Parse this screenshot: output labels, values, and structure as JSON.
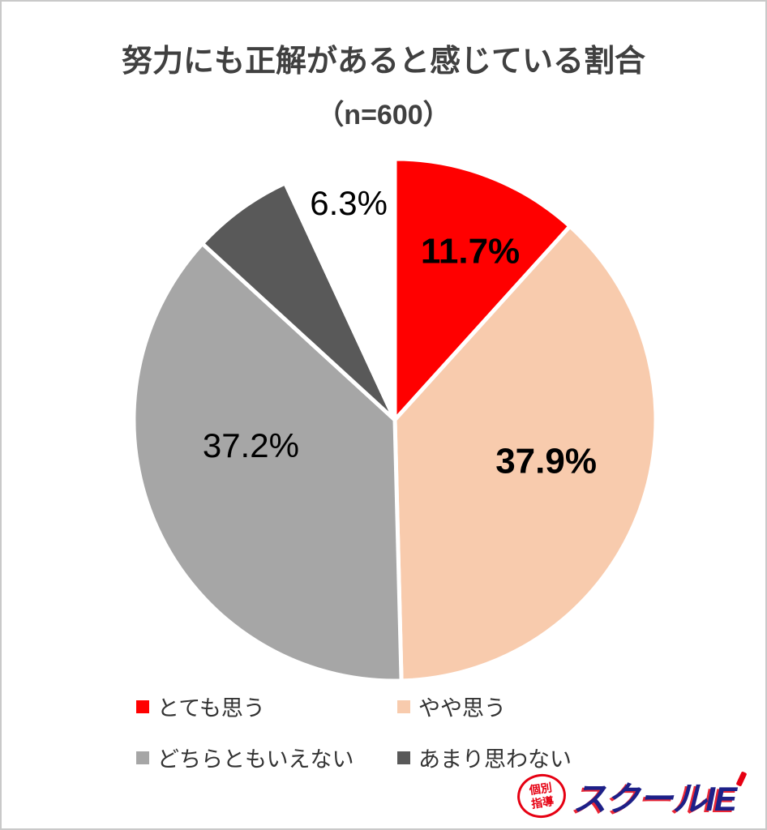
{
  "chart_data": {
    "type": "pie",
    "title": "努力にも正解があると感じている割合",
    "subtitle": "（n=600）",
    "n": 600,
    "direction": "clockwise",
    "start_angle_deg": 0,
    "segments": [
      {
        "label": "とても思う",
        "value": 11.7,
        "display": "11.7%",
        "color": "#ff0000",
        "label_color": "#000000",
        "label_bold": true,
        "label_at": {
          "angle": 24,
          "radius_frac": 0.71
        }
      },
      {
        "label": "やや思う",
        "value": 37.9,
        "display": "37.9%",
        "color": "#f8cbad",
        "label_color": "#000000",
        "label_bold": true,
        "label_at": {
          "angle": 105,
          "radius_frac": 0.6
        }
      },
      {
        "label": "どちらともいえない",
        "value": 37.2,
        "display": "37.2%",
        "color": "#a6a6a6",
        "label_color": "#000000",
        "label_bold": false,
        "label_at": {
          "angle": 260,
          "radius_frac": 0.56
        }
      },
      {
        "label": "あまり思わない",
        "value": 6.3,
        "display": "6.3%",
        "color": "#595959",
        "label_color": "#000000",
        "label_bold": false,
        "label_at": {
          "angle": 348,
          "radius_frac": 0.85
        }
      }
    ],
    "unlabeled_gap": {
      "value": 6.9,
      "color": "#ffffff"
    },
    "legend_position": "bottom",
    "slice_border_color": "#ffffff"
  },
  "logo": {
    "tagline_lines": [
      "個別",
      "指導"
    ],
    "brand": "スクールIE",
    "red": "#e60012",
    "blue": "#1d2088"
  }
}
